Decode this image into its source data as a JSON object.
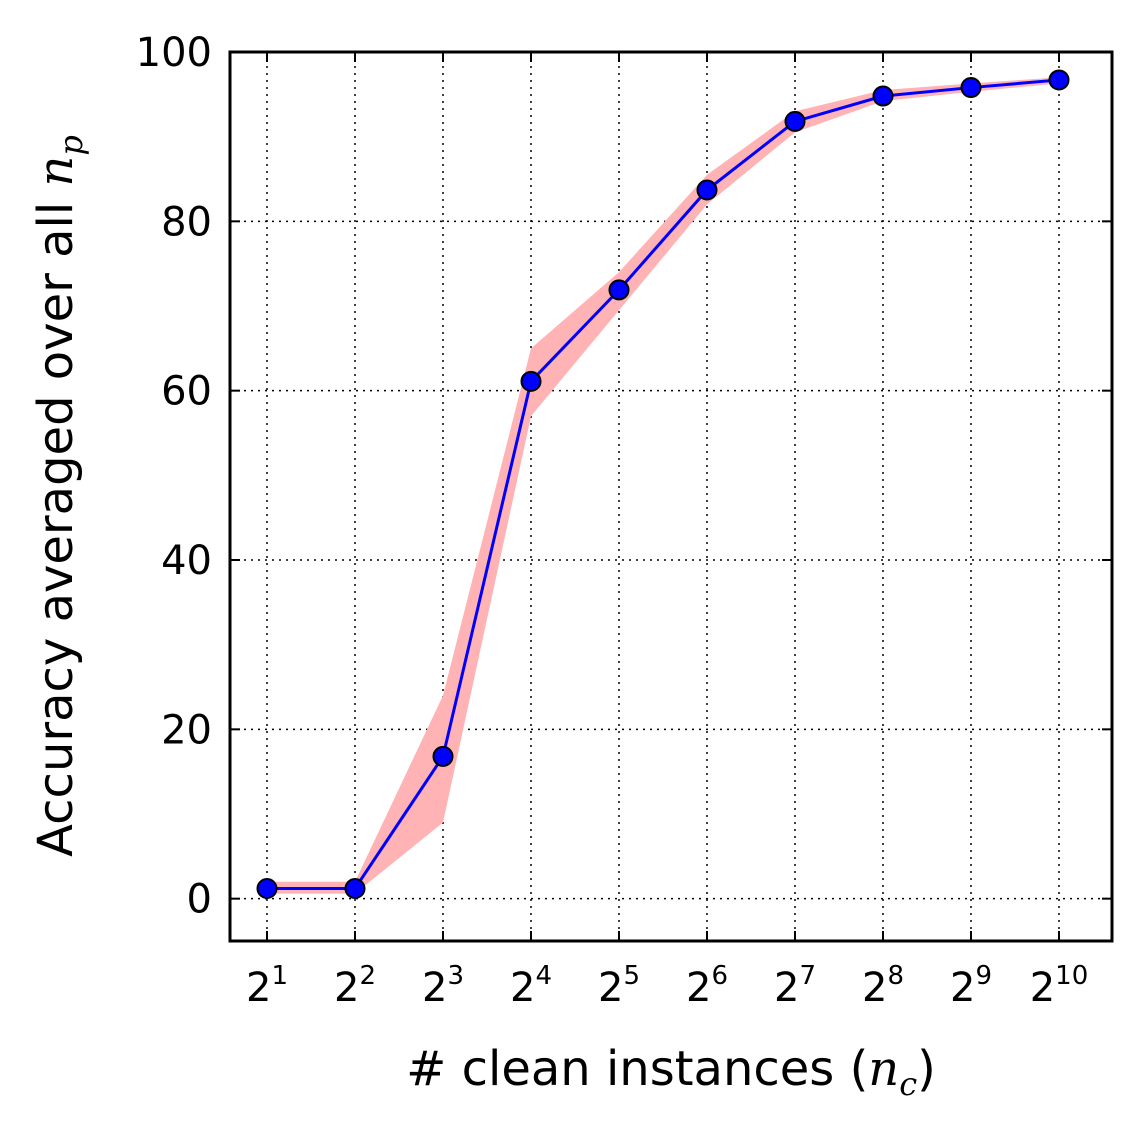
{
  "chart_data": {
    "type": "line",
    "xlabel_text": "# clean instances (",
    "xlabel_var": "n",
    "xlabel_sub": "c",
    "xlabel_close": ")",
    "ylabel_text": "Accuracy averaged over all ",
    "ylabel_var": "n",
    "ylabel_sub": "p",
    "x_base": "2",
    "x_exponents": [
      "1",
      "2",
      "3",
      "4",
      "5",
      "6",
      "7",
      "8",
      "9",
      "10"
    ],
    "y_ticks": [
      "0",
      "20",
      "40",
      "60",
      "80",
      "100"
    ],
    "ylim": [
      -5,
      100
    ],
    "grid": true,
    "series": [
      {
        "values": [
          1.2,
          1.2,
          16.8,
          61.1,
          71.9,
          83.7,
          91.8,
          94.8,
          95.8,
          96.7
        ],
        "band_low": [
          0.6,
          0.6,
          9.0,
          57.0,
          69.5,
          82.0,
          90.5,
          94.2,
          95.3,
          96.3
        ],
        "band_high": [
          2.0,
          2.0,
          24.0,
          65.0,
          74.0,
          85.5,
          93.0,
          95.5,
          96.3,
          97.0
        ],
        "color": "#0000ff",
        "band_color": "#ffb3b5"
      }
    ]
  }
}
